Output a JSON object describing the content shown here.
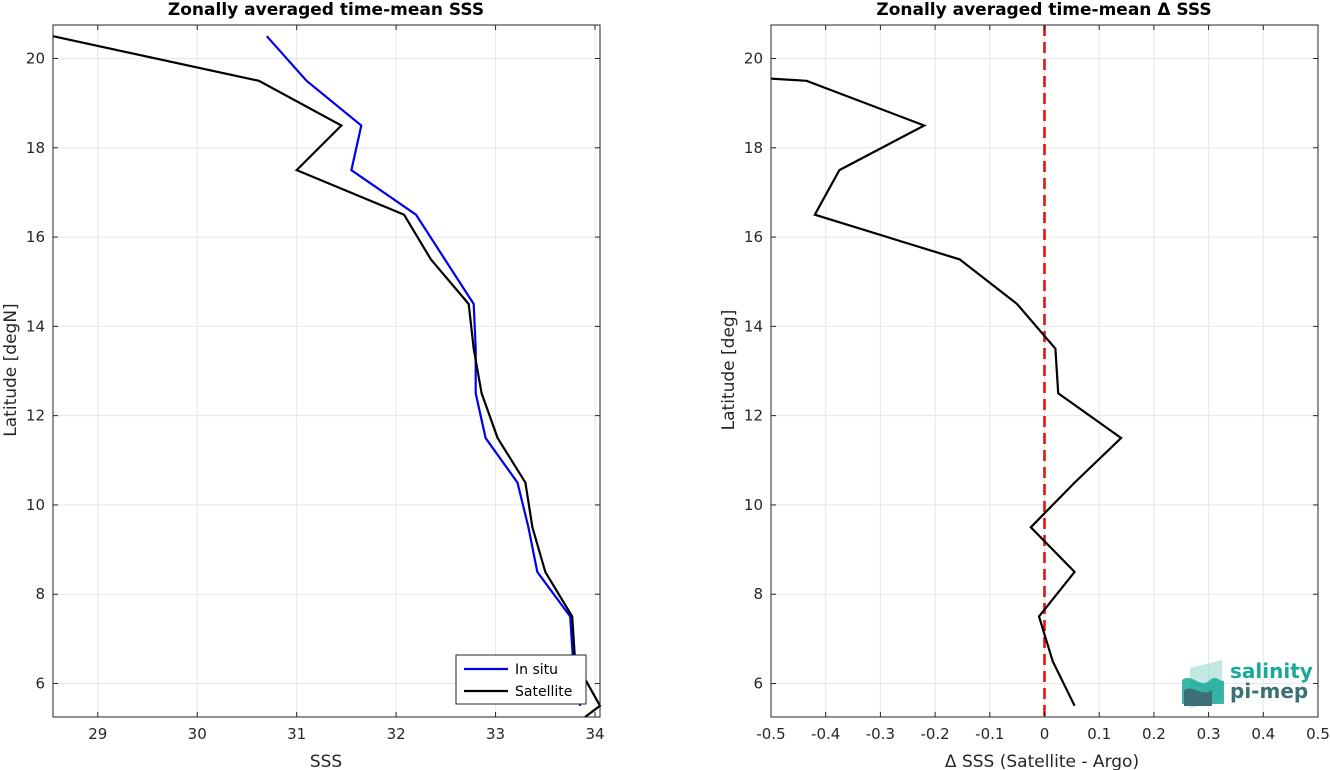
{
  "chart_data": [
    {
      "type": "line",
      "title": "Zonally averaged time-mean SSS",
      "xlabel": "SSS",
      "ylabel": "Latitude [degN]",
      "xlim": [
        28.55,
        34.05
      ],
      "ylim": [
        5.25,
        20.75
      ],
      "xticks": [
        29,
        30,
        31,
        32,
        33,
        34
      ],
      "yticks": [
        6,
        8,
        10,
        12,
        14,
        16,
        18,
        20
      ],
      "grid": true,
      "legend_position": "bottom-right",
      "series": [
        {
          "name": "In situ",
          "color": "#0000ee",
          "x": [
            30.7,
            31.1,
            31.65,
            31.55,
            32.2,
            32.78,
            32.8,
            32.8,
            32.9,
            33.22,
            33.33,
            33.42,
            33.75,
            33.78,
            33.85
          ],
          "y": [
            20.5,
            19.5,
            18.5,
            17.5,
            16.5,
            14.5,
            13.5,
            12.5,
            11.5,
            10.5,
            9.5,
            8.5,
            7.5,
            6.5,
            5.5
          ]
        },
        {
          "name": "Satellite",
          "color": "#000000",
          "x": [
            28.55,
            30.62,
            31.45,
            31.0,
            32.08,
            32.35,
            32.73,
            32.78,
            32.86,
            33.02,
            33.3,
            33.37,
            33.5,
            33.77,
            33.8,
            34.05,
            33.9
          ],
          "y": [
            20.5,
            19.5,
            18.5,
            17.5,
            16.5,
            15.5,
            14.5,
            13.5,
            12.5,
            11.5,
            10.5,
            9.5,
            8.5,
            7.5,
            6.5,
            5.5,
            5.25
          ]
        }
      ]
    },
    {
      "type": "line",
      "title": "Zonally averaged time-mean Δ SSS",
      "xlabel": "Δ SSS (Satellite - Argo)",
      "ylabel": "Latitude [deg]",
      "xlim": [
        -0.5,
        0.5
      ],
      "ylim": [
        5.25,
        20.75
      ],
      "xticks": [
        -0.5,
        -0.4,
        -0.3,
        -0.2,
        -0.1,
        0,
        0.1,
        0.2,
        0.3,
        0.4,
        0.5
      ],
      "yticks": [
        6,
        8,
        10,
        12,
        14,
        16,
        18,
        20
      ],
      "grid": true,
      "reference_line": {
        "x": 0,
        "color": "#e3140d",
        "style": "dashed"
      },
      "series": [
        {
          "color": "#000000",
          "x": [
            -0.5,
            -0.435,
            -0.22,
            -0.375,
            -0.42,
            -0.155,
            -0.05,
            0.02,
            0.025,
            0.14,
            0.055,
            -0.025,
            0.055,
            -0.01,
            0.015,
            0.055
          ],
          "y": [
            19.55,
            19.5,
            18.5,
            17.5,
            16.5,
            15.5,
            14.5,
            13.5,
            12.5,
            11.5,
            10.5,
            9.5,
            8.5,
            7.5,
            6.5,
            5.5
          ]
        }
      ]
    }
  ],
  "logo": {
    "line1": "salinity",
    "line2": "pi-mep",
    "colors": {
      "primary": "#19a99a",
      "secondary": "#3d6f77",
      "light": "#8fd6c9"
    }
  }
}
